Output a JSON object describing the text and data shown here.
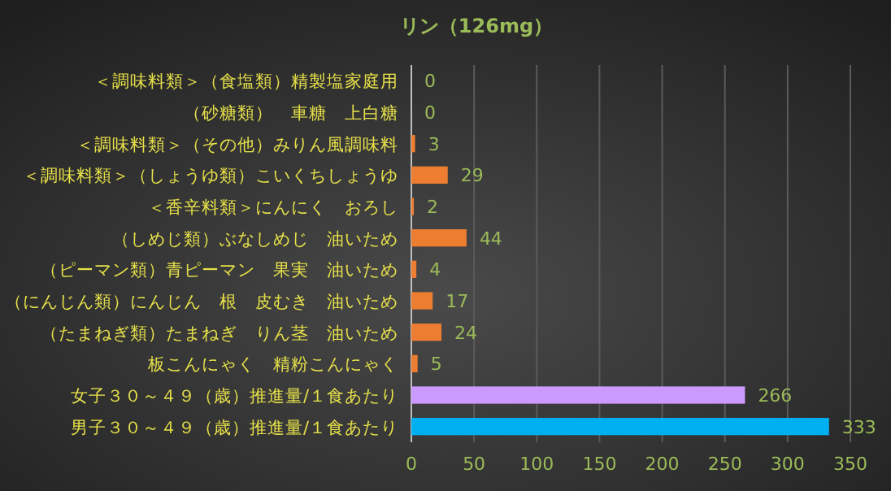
{
  "chart_data": {
    "type": "bar",
    "orientation": "horizontal",
    "title": "リン（126mg）",
    "categories": [
      "＜調味料類＞（食塩類）精製塩家庭用",
      "（砂糖類）　車糖　上白糖",
      "＜調味料類＞（その他）みりん風調味料",
      "＜調味料類＞（しょうゆ類）こいくちしょうゆ",
      "＜香辛料類＞にんにく　おろし",
      "（しめじ類）ぶなしめじ　油いため",
      "（ピーマン類）青ピーマン　果実　油いため",
      "（にんじん類）にんじん　根　皮むき　油いため",
      "（たまねぎ類）たまねぎ　りん茎　油いため",
      "板こんにゃく　精粉こんにゃく",
      "女子３０～４９（歳）推進量/１食あたり",
      "男子３０～４９（歳）推進量/１食あたり"
    ],
    "values": [
      0,
      0,
      3,
      29,
      2,
      44,
      4,
      17,
      24,
      5,
      266,
      333
    ],
    "colors": [
      "#ed7d31",
      "#ed7d31",
      "#ed7d31",
      "#ed7d31",
      "#ed7d31",
      "#ed7d31",
      "#ed7d31",
      "#ed7d31",
      "#ed7d31",
      "#ed7d31",
      "#cc99ff",
      "#00b0f0"
    ],
    "data_labels": true,
    "xlim": [
      0,
      350
    ],
    "xticks": [
      0,
      50,
      100,
      150,
      200,
      250,
      300,
      350
    ],
    "grid": "x"
  }
}
